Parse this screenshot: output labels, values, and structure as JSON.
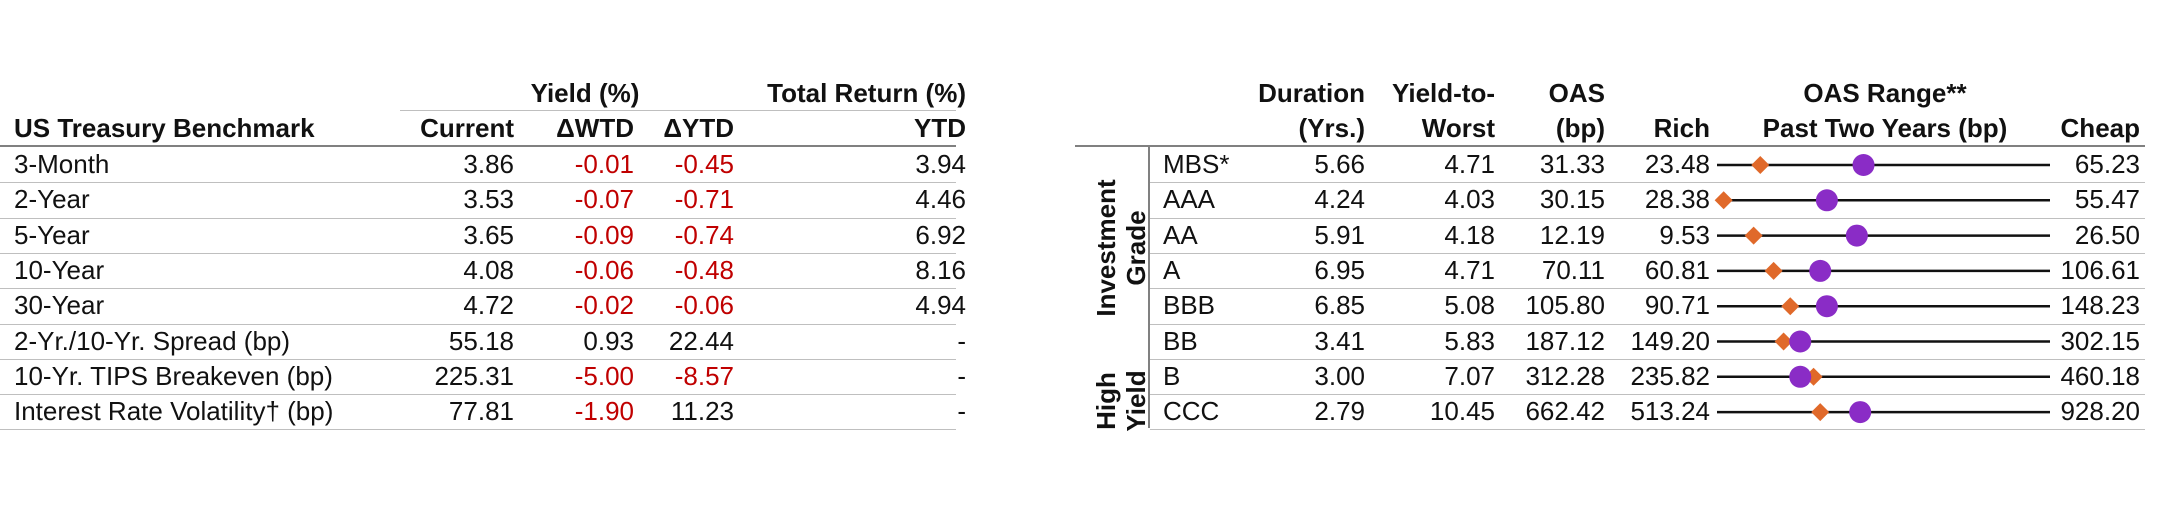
{
  "treasury": {
    "header_yield": "Yield (%)",
    "header_total_return": "Total Return (%)",
    "col_benchmark": "US Treasury Benchmark",
    "col_current": "Current",
    "col_wtd": "ΔWTD",
    "col_ytd": "ΔYTD",
    "col_tr_ytd": "YTD",
    "rows": [
      {
        "label": "3-Month",
        "current": "3.86",
        "wtd": "-0.01",
        "ytd": "-0.45",
        "tr": "3.94"
      },
      {
        "label": "2-Year",
        "current": "3.53",
        "wtd": "-0.07",
        "ytd": "-0.71",
        "tr": "4.46"
      },
      {
        "label": "5-Year",
        "current": "3.65",
        "wtd": "-0.09",
        "ytd": "-0.74",
        "tr": "6.92"
      },
      {
        "label": "10-Year",
        "current": "4.08",
        "wtd": "-0.06",
        "ytd": "-0.48",
        "tr": "8.16"
      },
      {
        "label": "30-Year",
        "current": "4.72",
        "wtd": "-0.02",
        "ytd": "-0.06",
        "tr": "4.94"
      },
      {
        "label": "2-Yr./10-Yr. Spread (bp)",
        "current": "55.18",
        "wtd": "0.93",
        "ytd": "22.44",
        "tr": "-"
      },
      {
        "label": "10-Yr. TIPS Breakeven (bp)",
        "current": "225.31",
        "wtd": "-5.00",
        "ytd": "-8.57",
        "tr": "-"
      },
      {
        "label": "Interest Rate Volatility† (bp)",
        "current": "77.81",
        "wtd": "-1.90",
        "ytd": "11.23",
        "tr": "-"
      }
    ],
    "negative_color": "#c00000"
  },
  "credit": {
    "col_duration_1": "Duration",
    "col_duration_2": "(Yrs.)",
    "col_ytw_1": "Yield-to-",
    "col_ytw_2": "Worst",
    "col_oas_1": "OAS",
    "col_oas_2": "(bp)",
    "col_rich": "Rich",
    "col_range_1": "OAS Range**",
    "col_range_2": "Past Two Years (bp)",
    "col_cheap": "Cheap",
    "group_ig": "Investment Grade",
    "group_ig_line1": "Investment",
    "group_ig_line2": "Grade",
    "group_hy_line1": "High",
    "group_hy_line2": "Yield",
    "rows": [
      {
        "label": "MBS*",
        "duration": "5.66",
        "ytw": "4.71",
        "oas": "31.33",
        "rich": "23.48",
        "cheap": "65.23",
        "current_oas": 31.33,
        "rich_v": 23.48,
        "cheap_v": 65.23,
        "marker_pos": 0.13,
        "dot_pos": 0.44
      },
      {
        "label": "AAA",
        "duration": "4.24",
        "ytw": "4.03",
        "oas": "30.15",
        "rich": "28.38",
        "cheap": "55.47",
        "current_oas": 30.15,
        "rich_v": 28.38,
        "cheap_v": 55.47,
        "marker_pos": 0.02,
        "dot_pos": 0.33
      },
      {
        "label": "AA",
        "duration": "5.91",
        "ytw": "4.18",
        "oas": "12.19",
        "rich": "9.53",
        "cheap": "26.50",
        "current_oas": 12.19,
        "rich_v": 9.53,
        "cheap_v": 26.5,
        "marker_pos": 0.11,
        "dot_pos": 0.42
      },
      {
        "label": "A",
        "duration": "6.95",
        "ytw": "4.71",
        "oas": "70.11",
        "rich": "60.81",
        "cheap": "106.61",
        "current_oas": 70.11,
        "rich_v": 60.81,
        "cheap_v": 106.61,
        "marker_pos": 0.17,
        "dot_pos": 0.31
      },
      {
        "label": "BBB",
        "duration": "6.85",
        "ytw": "5.08",
        "oas": "105.80",
        "rich": "90.71",
        "cheap": "148.23",
        "current_oas": 105.8,
        "rich_v": 90.71,
        "cheap_v": 148.23,
        "marker_pos": 0.22,
        "dot_pos": 0.33
      },
      {
        "label": "BB",
        "duration": "3.41",
        "ytw": "5.83",
        "oas": "187.12",
        "rich": "149.20",
        "cheap": "302.15",
        "current_oas": 187.12,
        "rich_v": 149.2,
        "cheap_v": 302.15,
        "marker_pos": 0.2,
        "dot_pos": 0.25
      },
      {
        "label": "B",
        "duration": "3.00",
        "ytw": "7.07",
        "oas": "312.28",
        "rich": "235.82",
        "cheap": "460.18",
        "current_oas": 312.28,
        "rich_v": 235.82,
        "cheap_v": 460.18,
        "marker_pos": 0.29,
        "dot_pos": 0.25
      },
      {
        "label": "CCC",
        "duration": "2.79",
        "ytw": "10.45",
        "oas": "662.42",
        "rich": "513.24",
        "cheap": "928.20",
        "current_oas": 662.42,
        "rich_v": 513.24,
        "cheap_v": 928.2,
        "marker_pos": 0.31,
        "dot_pos": 0.43
      }
    ],
    "diamond_color": "#e0692a",
    "dot_color": "#8a2cc6"
  }
}
